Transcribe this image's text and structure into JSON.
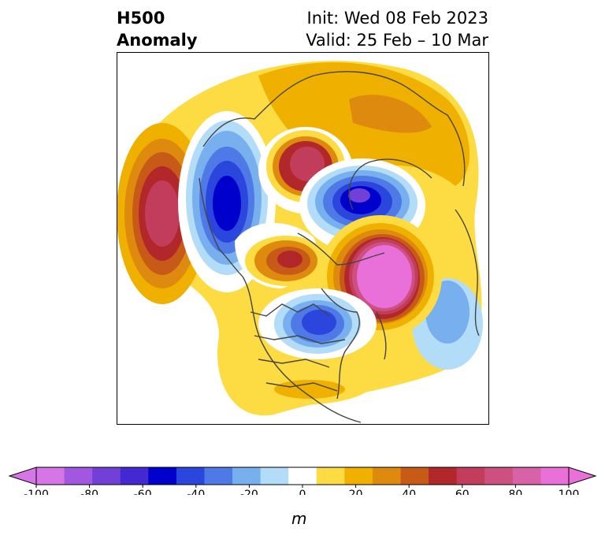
{
  "title": {
    "left_line1": "H500",
    "left_line2": "Anomaly",
    "right_line1": "Init: Wed 08 Feb 2023",
    "right_line2": "Valid: 25 Feb – 10 Mar"
  },
  "colorbar": {
    "unit": "m",
    "ticks": [
      "-100",
      "-80",
      "-60",
      "-40",
      "-20",
      "0",
      "20",
      "40",
      "60",
      "80",
      "100"
    ],
    "levels": [
      -100,
      -90,
      -80,
      -70,
      -60,
      -50,
      -40,
      -30,
      -20,
      -10,
      10,
      20,
      30,
      40,
      50,
      60,
      70,
      80,
      90,
      100
    ],
    "colors": [
      "#d675e6",
      "#a157e0",
      "#7240d6",
      "#4428d2",
      "#0000cc",
      "#2b46dc",
      "#4e79e6",
      "#78afee",
      "#b2dcf8",
      "#ffffff",
      "#fcdc42",
      "#f0b000",
      "#de8a0e",
      "#c85a18",
      "#b2272a",
      "#c23d5c",
      "#cc5080",
      "#d862a6",
      "#e870d8"
    ],
    "ext_low": "#d675e6",
    "ext_high": "#e870d8"
  }
}
